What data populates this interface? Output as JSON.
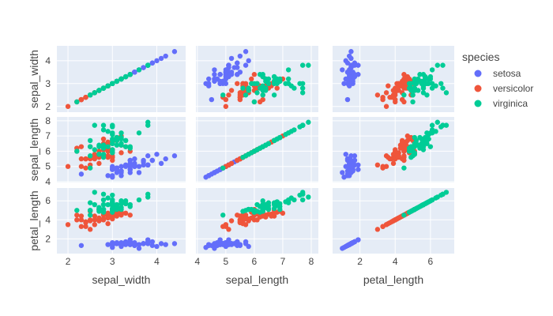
{
  "chart_data": {
    "type": "scatter-matrix",
    "dimensions": [
      "sepal_width",
      "sepal_length",
      "petal_length"
    ],
    "axis_ranges": {
      "sepal_width": [
        1.75,
        4.65
      ],
      "sepal_length": [
        3.95,
        8.25
      ],
      "petal_length": [
        0.45,
        7.35
      ]
    },
    "ticks": {
      "sepal_width": [
        2,
        3,
        4
      ],
      "sepal_length": [
        4,
        5,
        6,
        7,
        8
      ],
      "petal_length": [
        2,
        4,
        6
      ]
    },
    "grid": true,
    "legend": {
      "title": "species",
      "placement": "right",
      "entries": [
        "setosa",
        "versicolor",
        "virginica"
      ]
    },
    "colors": {
      "setosa": "#636efa",
      "versicolor": "#EF553B",
      "virginica": "#00cc96",
      "panel_bg": "#E5ECF6",
      "grid": "#ffffff"
    },
    "fields": [
      "sepal_length",
      "sepal_width",
      "petal_length"
    ],
    "series": [
      {
        "name": "setosa",
        "points": [
          [
            5.1,
            3.5,
            1.4
          ],
          [
            4.9,
            3.0,
            1.4
          ],
          [
            4.7,
            3.2,
            1.3
          ],
          [
            4.6,
            3.1,
            1.5
          ],
          [
            5.0,
            3.6,
            1.4
          ],
          [
            5.4,
            3.9,
            1.7
          ],
          [
            4.6,
            3.4,
            1.4
          ],
          [
            5.0,
            3.4,
            1.5
          ],
          [
            4.4,
            2.9,
            1.4
          ],
          [
            4.9,
            3.1,
            1.5
          ],
          [
            5.4,
            3.7,
            1.5
          ],
          [
            4.8,
            3.4,
            1.6
          ],
          [
            4.8,
            3.0,
            1.4
          ],
          [
            4.3,
            3.0,
            1.1
          ],
          [
            5.8,
            4.0,
            1.2
          ],
          [
            5.7,
            4.4,
            1.5
          ],
          [
            5.4,
            3.9,
            1.3
          ],
          [
            5.1,
            3.5,
            1.4
          ],
          [
            5.7,
            3.8,
            1.7
          ],
          [
            5.1,
            3.8,
            1.5
          ],
          [
            5.4,
            3.4,
            1.7
          ],
          [
            5.1,
            3.7,
            1.5
          ],
          [
            4.6,
            3.6,
            1.0
          ],
          [
            5.1,
            3.3,
            1.7
          ],
          [
            4.8,
            3.4,
            1.9
          ],
          [
            5.0,
            3.0,
            1.6
          ],
          [
            5.0,
            3.4,
            1.6
          ],
          [
            5.2,
            3.5,
            1.5
          ],
          [
            5.2,
            3.4,
            1.4
          ],
          [
            4.7,
            3.2,
            1.6
          ],
          [
            4.8,
            3.1,
            1.6
          ],
          [
            5.4,
            3.4,
            1.5
          ],
          [
            5.2,
            4.1,
            1.5
          ],
          [
            5.5,
            4.2,
            1.4
          ],
          [
            4.9,
            3.1,
            1.5
          ],
          [
            5.0,
            3.2,
            1.2
          ],
          [
            5.5,
            3.5,
            1.3
          ],
          [
            4.9,
            3.1,
            1.5
          ],
          [
            4.4,
            3.0,
            1.3
          ],
          [
            5.1,
            3.4,
            1.5
          ],
          [
            5.0,
            3.5,
            1.3
          ],
          [
            4.5,
            2.3,
            1.3
          ],
          [
            4.4,
            3.2,
            1.3
          ],
          [
            5.0,
            3.5,
            1.6
          ],
          [
            5.1,
            3.8,
            1.9
          ],
          [
            4.8,
            3.0,
            1.4
          ],
          [
            5.1,
            3.8,
            1.6
          ],
          [
            4.6,
            3.2,
            1.4
          ],
          [
            5.3,
            3.7,
            1.5
          ],
          [
            5.0,
            3.3,
            1.4
          ]
        ]
      },
      {
        "name": "versicolor",
        "points": [
          [
            7.0,
            3.2,
            4.7
          ],
          [
            6.4,
            3.2,
            4.5
          ],
          [
            6.9,
            3.1,
            4.9
          ],
          [
            5.5,
            2.3,
            4.0
          ],
          [
            6.5,
            2.8,
            4.6
          ],
          [
            5.7,
            2.8,
            4.5
          ],
          [
            6.3,
            3.3,
            4.7
          ],
          [
            4.9,
            2.4,
            3.3
          ],
          [
            6.6,
            2.9,
            4.6
          ],
          [
            5.2,
            2.7,
            3.9
          ],
          [
            5.0,
            2.0,
            3.5
          ],
          [
            5.9,
            3.0,
            4.2
          ],
          [
            6.0,
            2.2,
            4.0
          ],
          [
            6.1,
            2.9,
            4.7
          ],
          [
            5.6,
            2.9,
            3.6
          ],
          [
            6.7,
            3.1,
            4.4
          ],
          [
            5.6,
            3.0,
            4.5
          ],
          [
            5.8,
            2.7,
            4.1
          ],
          [
            6.2,
            2.2,
            4.5
          ],
          [
            5.6,
            2.5,
            3.9
          ],
          [
            5.9,
            3.2,
            4.8
          ],
          [
            6.1,
            2.8,
            4.0
          ],
          [
            6.3,
            2.5,
            4.9
          ],
          [
            6.1,
            2.8,
            4.7
          ],
          [
            6.4,
            2.9,
            4.3
          ],
          [
            6.6,
            3.0,
            4.4
          ],
          [
            6.8,
            2.8,
            4.8
          ],
          [
            6.7,
            3.0,
            5.0
          ],
          [
            6.0,
            2.9,
            4.5
          ],
          [
            5.7,
            2.6,
            3.5
          ],
          [
            5.5,
            2.4,
            3.8
          ],
          [
            5.5,
            2.4,
            3.7
          ],
          [
            5.8,
            2.7,
            3.9
          ],
          [
            6.0,
            2.7,
            5.1
          ],
          [
            5.4,
            3.0,
            4.5
          ],
          [
            6.0,
            3.4,
            4.5
          ],
          [
            6.7,
            3.1,
            4.7
          ],
          [
            6.3,
            2.3,
            4.4
          ],
          [
            5.6,
            3.0,
            4.1
          ],
          [
            5.5,
            2.5,
            4.0
          ],
          [
            5.5,
            2.6,
            4.4
          ],
          [
            6.1,
            3.0,
            4.6
          ],
          [
            5.8,
            2.6,
            4.0
          ],
          [
            5.0,
            2.3,
            3.3
          ],
          [
            5.6,
            2.7,
            4.2
          ],
          [
            5.7,
            3.0,
            4.2
          ],
          [
            5.7,
            2.9,
            4.2
          ],
          [
            6.2,
            2.9,
            4.3
          ],
          [
            5.1,
            2.5,
            3.0
          ],
          [
            5.7,
            2.8,
            4.1
          ]
        ]
      },
      {
        "name": "virginica",
        "points": [
          [
            6.3,
            3.3,
            6.0
          ],
          [
            5.8,
            2.7,
            5.1
          ],
          [
            7.1,
            3.0,
            5.9
          ],
          [
            6.3,
            2.9,
            5.6
          ],
          [
            6.5,
            3.0,
            5.8
          ],
          [
            7.6,
            3.0,
            6.6
          ],
          [
            4.9,
            2.5,
            4.5
          ],
          [
            7.3,
            2.9,
            6.3
          ],
          [
            6.7,
            2.5,
            5.8
          ],
          [
            7.2,
            3.6,
            6.1
          ],
          [
            6.5,
            3.2,
            5.1
          ],
          [
            6.4,
            2.7,
            5.3
          ],
          [
            6.8,
            3.0,
            5.5
          ],
          [
            5.7,
            2.5,
            5.0
          ],
          [
            5.8,
            2.8,
            5.1
          ],
          [
            6.4,
            3.2,
            5.3
          ],
          [
            6.5,
            3.0,
            5.5
          ],
          [
            7.7,
            3.8,
            6.7
          ],
          [
            7.7,
            2.6,
            6.9
          ],
          [
            6.0,
            2.2,
            5.0
          ],
          [
            6.9,
            3.2,
            5.7
          ],
          [
            5.6,
            2.8,
            4.9
          ],
          [
            7.7,
            2.8,
            6.7
          ],
          [
            6.3,
            2.7,
            4.9
          ],
          [
            6.7,
            3.3,
            5.7
          ],
          [
            7.2,
            3.2,
            6.0
          ],
          [
            6.2,
            2.8,
            4.8
          ],
          [
            6.1,
            3.0,
            4.9
          ],
          [
            6.4,
            2.8,
            5.6
          ],
          [
            7.2,
            3.0,
            5.8
          ],
          [
            7.4,
            2.8,
            6.1
          ],
          [
            7.9,
            3.8,
            6.4
          ],
          [
            6.4,
            2.8,
            5.6
          ],
          [
            6.3,
            2.8,
            5.1
          ],
          [
            6.1,
            2.6,
            5.6
          ],
          [
            7.7,
            3.0,
            6.1
          ],
          [
            6.3,
            3.4,
            5.6
          ],
          [
            6.4,
            3.1,
            5.5
          ],
          [
            6.0,
            3.0,
            4.8
          ],
          [
            6.9,
            3.1,
            5.4
          ],
          [
            6.7,
            3.1,
            5.6
          ],
          [
            6.9,
            3.1,
            5.1
          ],
          [
            5.8,
            2.7,
            5.1
          ],
          [
            6.8,
            3.2,
            5.9
          ],
          [
            6.7,
            3.3,
            5.7
          ],
          [
            6.7,
            3.0,
            5.2
          ],
          [
            6.3,
            2.5,
            5.0
          ],
          [
            6.5,
            3.0,
            5.2
          ],
          [
            6.2,
            3.4,
            5.4
          ],
          [
            5.9,
            3.0,
            5.1
          ]
        ]
      }
    ]
  }
}
